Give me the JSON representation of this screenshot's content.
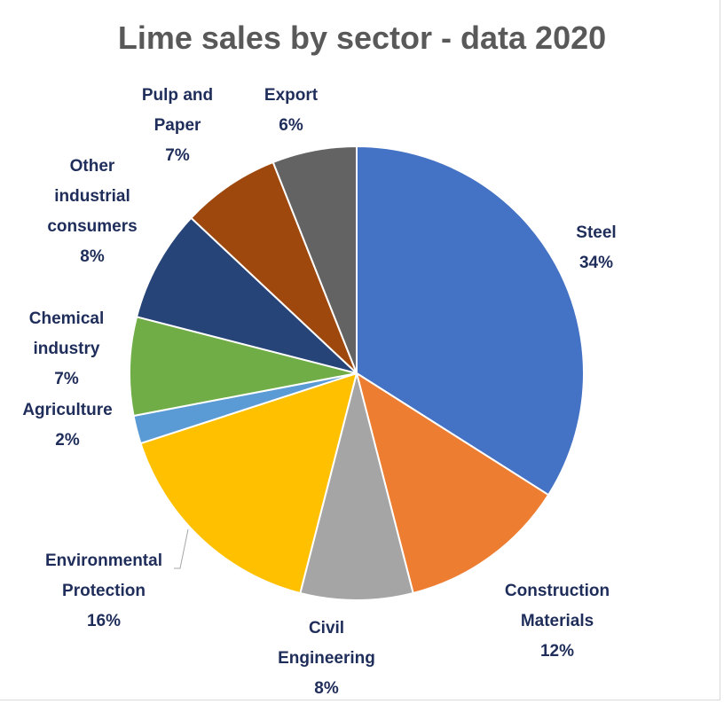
{
  "chart_data": {
    "type": "pie",
    "title": "Lime sales by sector - data 2020",
    "slices": [
      {
        "label": "Steel",
        "value": 34,
        "value_label": "34%",
        "color": "#4472c4"
      },
      {
        "label": "Construction Materials",
        "value": 12,
        "value_label": "12%",
        "color": "#ed7d31"
      },
      {
        "label": "Civil Engineering",
        "value": 8,
        "value_label": "8%",
        "color": "#a5a5a5"
      },
      {
        "label": "Environmental Protection",
        "value": 16,
        "value_label": "16%",
        "color": "#ffc000"
      },
      {
        "label": "Agriculture",
        "value": 2,
        "value_label": "2%",
        "color": "#5b9bd5"
      },
      {
        "label": "Chemical industry",
        "value": 7,
        "value_label": "7%",
        "color": "#70ad47"
      },
      {
        "label": "Other industrial consumers",
        "value": 8,
        "value_label": "8%",
        "color": "#264478"
      },
      {
        "label": "Pulp and Paper",
        "value": 7,
        "value_label": "7%",
        "color": "#9e480e"
      },
      {
        "label": "Export",
        "value": 6,
        "value_label": "6%",
        "color": "#636363"
      }
    ],
    "start_angle": "12 o'clock",
    "direction": "clockwise",
    "legend": "none"
  }
}
